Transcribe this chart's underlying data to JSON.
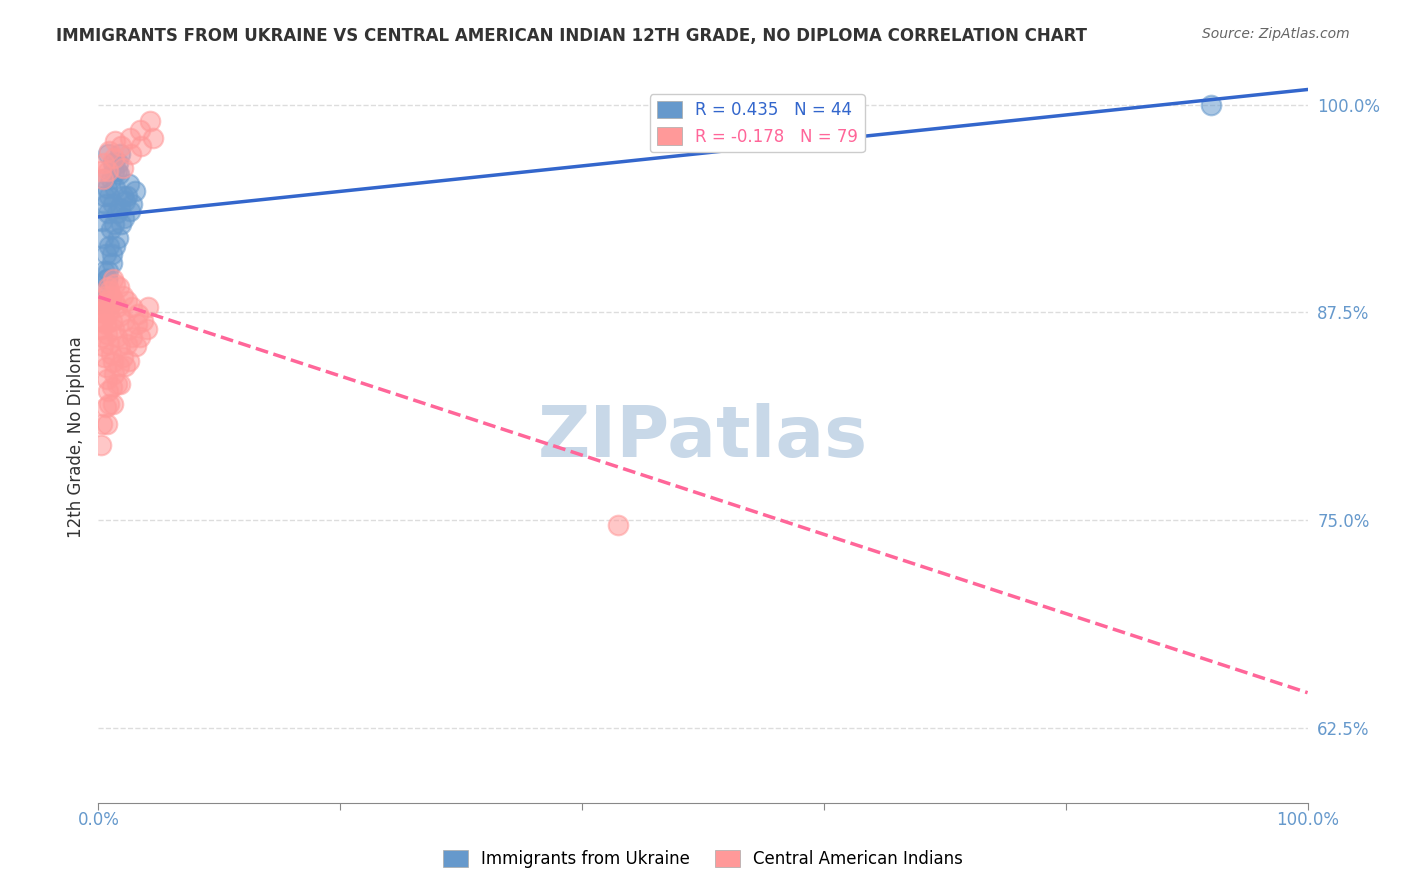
{
  "title": "IMMIGRANTS FROM UKRAINE VS CENTRAL AMERICAN INDIAN 12TH GRADE, NO DIPLOMA CORRELATION CHART",
  "source": "Source: ZipAtlas.com",
  "ylabel": "12th Grade, No Diploma",
  "ukraine_R": 0.435,
  "ukraine_N": 44,
  "central_R": -0.178,
  "central_N": 79,
  "ukraine_color": "#6699CC",
  "central_color": "#FF9999",
  "trendline_ukraine_color": "#3366CC",
  "trendline_central_color": "#FF6699",
  "watermark_color": "#C8D8E8",
  "right_axis_color": "#6699CC",
  "ytick_labels": [
    "62.5%",
    "75.0%",
    "87.5%",
    "100.0%"
  ],
  "ytick_values": [
    0.625,
    0.75,
    0.875,
    1.0
  ],
  "grid_color": "#DDDDDD",
  "ukraine_x": [
    0.005,
    0.008,
    0.012,
    0.015,
    0.018,
    0.005,
    0.007,
    0.01,
    0.013,
    0.016,
    0.003,
    0.006,
    0.009,
    0.014,
    0.017,
    0.004,
    0.008,
    0.012,
    0.02,
    0.025,
    0.006,
    0.01,
    0.015,
    0.022,
    0.03,
    0.005,
    0.009,
    0.013,
    0.018,
    0.024,
    0.007,
    0.011,
    0.016,
    0.021,
    0.028,
    0.004,
    0.008,
    0.014,
    0.019,
    0.026,
    0.003,
    0.007,
    0.011,
    0.92
  ],
  "ukraine_y": [
    0.955,
    0.97,
    0.965,
    0.96,
    0.97,
    0.945,
    0.95,
    0.955,
    0.96,
    0.965,
    0.93,
    0.94,
    0.945,
    0.95,
    0.958,
    0.92,
    0.935,
    0.94,
    0.945,
    0.952,
    0.91,
    0.925,
    0.935,
    0.942,
    0.948,
    0.9,
    0.915,
    0.928,
    0.938,
    0.945,
    0.895,
    0.905,
    0.92,
    0.932,
    0.94,
    0.888,
    0.9,
    0.915,
    0.928,
    0.936,
    0.882,
    0.895,
    0.91,
    1.0
  ],
  "central_x": [
    0.002,
    0.004,
    0.006,
    0.008,
    0.01,
    0.003,
    0.005,
    0.007,
    0.009,
    0.012,
    0.002,
    0.004,
    0.007,
    0.01,
    0.014,
    0.003,
    0.006,
    0.009,
    0.013,
    0.017,
    0.004,
    0.007,
    0.011,
    0.015,
    0.02,
    0.005,
    0.009,
    0.013,
    0.018,
    0.024,
    0.006,
    0.01,
    0.015,
    0.021,
    0.028,
    0.007,
    0.012,
    0.018,
    0.025,
    0.033,
    0.008,
    0.013,
    0.02,
    0.028,
    0.037,
    0.009,
    0.015,
    0.022,
    0.031,
    0.04,
    0.002,
    0.005,
    0.009,
    0.014,
    0.02,
    0.027,
    0.035,
    0.045,
    0.004,
    0.008,
    0.013,
    0.019,
    0.026,
    0.034,
    0.043,
    0.003,
    0.006,
    0.011,
    0.017,
    0.024,
    0.032,
    0.041,
    0.002,
    0.007,
    0.012,
    0.018,
    0.025,
    0.034,
    0.43
  ],
  "central_y": [
    0.875,
    0.88,
    0.885,
    0.89,
    0.88,
    0.87,
    0.875,
    0.882,
    0.888,
    0.895,
    0.865,
    0.87,
    0.878,
    0.885,
    0.892,
    0.86,
    0.868,
    0.875,
    0.882,
    0.89,
    0.855,
    0.862,
    0.87,
    0.878,
    0.885,
    0.848,
    0.856,
    0.865,
    0.873,
    0.882,
    0.842,
    0.85,
    0.86,
    0.87,
    0.878,
    0.835,
    0.845,
    0.855,
    0.865,
    0.874,
    0.828,
    0.838,
    0.848,
    0.86,
    0.87,
    0.82,
    0.832,
    0.843,
    0.855,
    0.865,
    0.96,
    0.965,
    0.972,
    0.978,
    0.962,
    0.97,
    0.975,
    0.98,
    0.955,
    0.96,
    0.968,
    0.975,
    0.98,
    0.985,
    0.99,
    0.808,
    0.818,
    0.83,
    0.843,
    0.856,
    0.868,
    0.878,
    0.795,
    0.808,
    0.82,
    0.832,
    0.846,
    0.86,
    0.747
  ]
}
